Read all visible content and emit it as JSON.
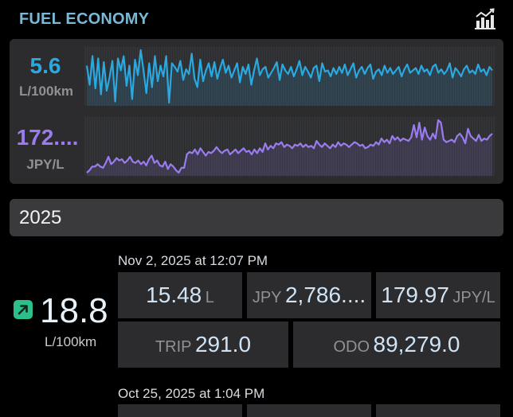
{
  "header": {
    "title": "FUEL ECONOMY",
    "chart_icon": "chart-trend-icon"
  },
  "graph": {
    "economy": {
      "value": "5.6",
      "unit": "L/100km",
      "color": "#2aa9e0",
      "series": [
        54,
        38,
        62,
        35,
        60,
        30,
        57,
        33,
        44,
        58,
        24,
        60,
        50,
        62,
        37,
        54,
        26,
        59,
        46,
        67,
        50,
        31,
        56,
        36,
        62,
        41,
        54,
        45,
        62,
        23,
        56,
        53,
        49,
        58,
        42,
        51,
        47,
        64,
        43,
        36,
        59,
        41,
        50,
        56,
        45,
        57,
        43,
        52,
        59,
        48,
        54,
        44,
        50,
        56,
        40,
        53,
        47,
        55,
        38,
        50,
        60,
        46,
        51,
        53,
        44,
        48,
        52,
        57,
        42,
        55,
        50,
        47,
        53,
        45,
        51,
        58,
        46,
        53,
        49,
        44,
        52,
        54,
        41,
        56,
        49,
        50,
        45,
        52,
        47,
        53,
        48,
        55,
        46,
        51,
        56,
        44,
        50,
        53,
        47,
        52,
        55,
        43,
        49,
        51,
        46,
        54,
        48,
        52,
        47,
        50,
        53,
        45,
        51,
        55,
        48,
        50,
        52,
        47,
        54,
        49,
        51,
        46,
        53,
        55,
        48,
        51,
        47,
        50,
        56,
        44,
        52,
        49,
        45,
        51,
        54,
        48,
        50,
        47,
        55,
        49,
        51,
        46,
        53,
        50
      ]
    },
    "price": {
      "value": "172....",
      "unit": "JPY/L",
      "color": "#9a7cf0",
      "series": [
        158,
        160,
        163,
        163,
        165,
        163,
        162,
        166,
        171,
        165,
        167,
        170,
        168,
        169,
        166,
        168,
        171,
        167,
        166,
        168,
        165,
        167,
        164,
        169,
        172,
        166,
        168,
        164,
        163,
        167,
        161,
        165,
        163,
        160,
        158,
        162,
        162,
        173,
        175,
        174,
        177,
        173,
        178,
        175,
        172,
        175,
        174,
        176,
        179,
        176,
        174,
        176,
        177,
        173,
        175,
        177,
        174,
        176,
        178,
        175,
        176,
        173,
        177,
        174,
        178,
        175,
        182,
        177,
        180,
        178,
        182,
        181,
        183,
        179,
        181,
        180,
        178,
        181,
        180,
        182,
        179,
        181,
        179,
        180,
        178,
        184,
        181,
        179,
        182,
        180,
        178,
        181,
        179,
        183,
        180,
        182,
        181,
        179,
        181,
        183,
        182,
        180,
        181,
        178,
        179,
        181,
        180,
        183,
        181,
        186,
        183,
        185,
        182,
        188,
        185,
        187,
        184,
        186,
        185,
        184,
        187,
        197,
        187,
        199,
        185,
        195,
        188,
        185,
        190,
        186,
        201,
        199,
        185,
        183,
        184,
        185,
        183,
        188,
        190,
        187,
        182,
        194,
        188,
        186,
        184,
        189,
        184,
        186,
        185,
        188,
        190
      ]
    }
  },
  "year": "2025",
  "entries": [
    {
      "date": "Nov 2, 2025 at 12:07 PM",
      "trend_icon": "trend-up-icon",
      "economy": "18.8",
      "economy_unit": "L/100km",
      "volume": "15.48",
      "volume_unit": "L",
      "cost_label": "JPY",
      "cost": "2,786....",
      "unit_price": "179.97",
      "unit_price_unit": "JPY/L",
      "trip_label": "TRIP",
      "trip": "291.0",
      "odo_label": "ODO",
      "odo": "89,279.0"
    },
    {
      "date": "Oct 25, 2025 at 1:04 PM"
    }
  ]
}
